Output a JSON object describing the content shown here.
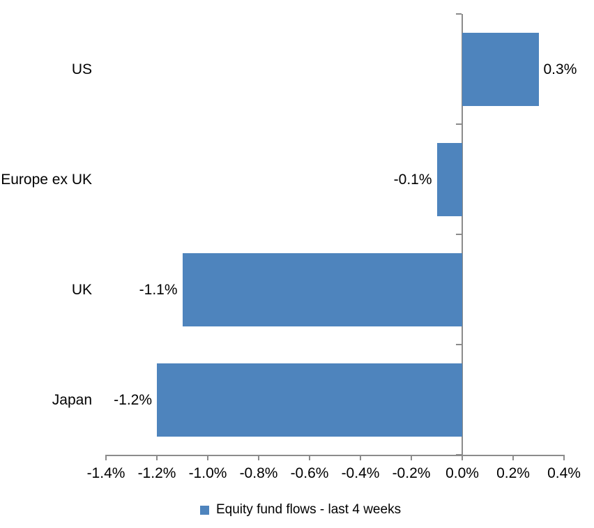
{
  "chart_data": {
    "type": "bar",
    "orientation": "horizontal",
    "title": "",
    "categories": [
      "US",
      "Europe ex UK",
      "UK",
      "Japan"
    ],
    "values": [
      0.3,
      -0.1,
      -1.1,
      -1.2
    ],
    "data_labels": [
      "0.3%",
      "-0.1%",
      "-1.1%",
      "-1.2%"
    ],
    "series_name": "Equity fund flows - last 4 weeks",
    "x_tick_values": [
      -1.4,
      -1.2,
      -1.0,
      -0.8,
      -0.6,
      -0.4,
      -0.2,
      0.0,
      0.2,
      0.4
    ],
    "x_ticks": [
      "-1.4%",
      "-1.2%",
      "-1.0%",
      "-0.8%",
      "-0.6%",
      "-0.4%",
      "-0.2%",
      "0.0%",
      "0.2%",
      "0.4%"
    ],
    "xlim": [
      -1.4,
      0.4
    ],
    "grid": false,
    "legend_position": "bottom",
    "bar_color": "#4e84bd",
    "axis_color": "#8b8b8b",
    "text_color": "#000000",
    "background_color": "#ffffff"
  },
  "legend": {
    "label": "Equity fund flows - last 4 weeks",
    "swatch_color": "#4e84bd"
  }
}
